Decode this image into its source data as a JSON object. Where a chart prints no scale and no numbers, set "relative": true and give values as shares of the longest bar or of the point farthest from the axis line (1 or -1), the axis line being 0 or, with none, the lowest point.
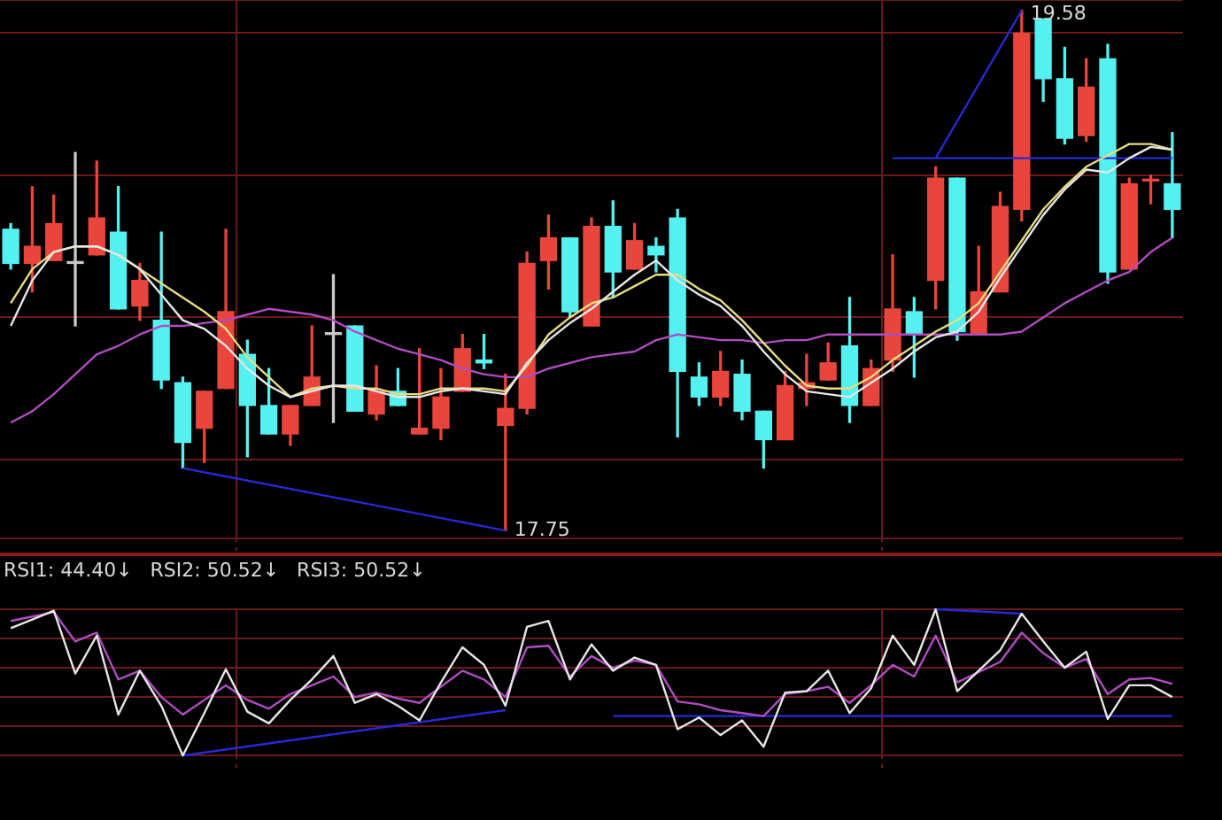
{
  "chart_data": [
    {
      "type": "candlestick",
      "grid": true,
      "tick_labels": false,
      "categories": [
        null,
        null,
        null,
        null,
        null,
        null,
        null,
        null,
        null,
        null,
        null,
        null,
        null,
        null,
        null,
        null,
        null,
        null,
        null,
        null,
        null,
        null,
        null,
        null,
        null,
        null,
        null,
        null,
        null,
        null,
        null,
        null,
        null,
        null,
        null,
        null,
        null,
        null,
        null,
        null,
        null,
        null,
        null,
        null,
        null,
        null,
        null,
        null,
        null,
        null,
        null,
        null,
        null,
        null,
        null
      ],
      "ohlc": [
        [
          18.81,
          18.83,
          18.67,
          18.69
        ],
        [
          18.69,
          18.96,
          18.59,
          18.75
        ],
        [
          18.7,
          18.93,
          18.7,
          18.83
        ],
        [
          18.69,
          19.08,
          18.47,
          18.69
        ],
        [
          18.72,
          19.05,
          18.72,
          18.85
        ],
        [
          18.8,
          18.96,
          18.53,
          18.53
        ],
        [
          18.54,
          18.69,
          18.49,
          18.63
        ],
        [
          18.49,
          18.8,
          18.25,
          18.28
        ],
        [
          18.27,
          18.29,
          17.97,
          18.06
        ],
        [
          18.11,
          18.24,
          17.99,
          18.24
        ],
        [
          18.25,
          18.81,
          18.25,
          18.52
        ],
        [
          18.37,
          18.42,
          18.01,
          18.19
        ],
        [
          18.19,
          18.32,
          18.09,
          18.09
        ],
        [
          18.09,
          18.19,
          18.05,
          18.19
        ],
        [
          18.19,
          18.47,
          18.19,
          18.29
        ],
        [
          18.44,
          18.65,
          18.13,
          18.44
        ],
        [
          18.47,
          18.47,
          18.17,
          18.17
        ],
        [
          18.16,
          18.33,
          18.14,
          18.24
        ],
        [
          18.24,
          18.32,
          18.19,
          18.19
        ],
        [
          18.09,
          18.39,
          18.09,
          18.11
        ],
        [
          18.11,
          18.32,
          18.07,
          18.22
        ],
        [
          18.24,
          18.44,
          18.24,
          18.39
        ],
        [
          18.35,
          18.44,
          18.32,
          18.34
        ],
        [
          18.12,
          18.3,
          17.75,
          18.18
        ],
        [
          18.18,
          18.73,
          18.16,
          18.69
        ],
        [
          18.7,
          18.86,
          18.6,
          18.78
        ],
        [
          18.78,
          18.78,
          18.5,
          18.52
        ],
        [
          18.47,
          18.85,
          18.47,
          18.82
        ],
        [
          18.82,
          18.91,
          18.57,
          18.66
        ],
        [
          18.67,
          18.83,
          18.67,
          18.77
        ],
        [
          18.75,
          18.78,
          18.66,
          18.72
        ],
        [
          18.85,
          18.88,
          18.08,
          18.31
        ],
        [
          18.29,
          18.34,
          18.19,
          18.22
        ],
        [
          18.22,
          18.38,
          18.19,
          18.31
        ],
        [
          18.3,
          18.35,
          18.14,
          18.17
        ],
        [
          18.17,
          18.17,
          17.97,
          18.07
        ],
        [
          18.07,
          18.31,
          18.07,
          18.26
        ],
        [
          18.25,
          18.37,
          18.19,
          18.27
        ],
        [
          18.28,
          18.41,
          18.28,
          18.34
        ],
        [
          18.4,
          18.57,
          18.13,
          18.19
        ],
        [
          18.19,
          18.35,
          18.19,
          18.32
        ],
        [
          18.35,
          18.72,
          18.31,
          18.53
        ],
        [
          18.52,
          18.57,
          18.29,
          18.44
        ],
        [
          18.63,
          19.03,
          18.53,
          18.99
        ],
        [
          18.99,
          18.99,
          18.42,
          18.45
        ],
        [
          18.44,
          18.75,
          18.44,
          18.59
        ],
        [
          18.59,
          18.94,
          18.59,
          18.89
        ],
        [
          18.88,
          19.58,
          18.84,
          19.5
        ],
        [
          19.55,
          19.55,
          19.26,
          19.34
        ],
        [
          19.34,
          19.45,
          19.11,
          19.13
        ],
        [
          19.14,
          19.41,
          19.12,
          19.31
        ],
        [
          19.41,
          19.46,
          18.62,
          18.66
        ],
        [
          18.67,
          18.99,
          18.67,
          18.97
        ],
        [
          18.98,
          19.0,
          18.9,
          18.98
        ],
        [
          18.97,
          19.15,
          18.78,
          18.88
        ]
      ],
      "colors": [
        "#55f0f0",
        "#e8453c",
        "#e8453c",
        "#c8c8c8",
        "#e8453c",
        "#55f0f0",
        "#e8453c",
        "#55f0f0",
        "#55f0f0",
        "#e8453c",
        "#e8453c",
        "#55f0f0",
        "#55f0f0",
        "#e8453c",
        "#e8453c",
        "#c8c8c8",
        "#55f0f0",
        "#e8453c",
        "#55f0f0",
        "#e8453c",
        "#e8453c",
        "#e8453c",
        "#55f0f0",
        "#e8453c",
        "#e8453c",
        "#e8453c",
        "#55f0f0",
        "#e8453c",
        "#55f0f0",
        "#e8453c",
        "#55f0f0",
        "#55f0f0",
        "#55f0f0",
        "#e8453c",
        "#55f0f0",
        "#55f0f0",
        "#e8453c",
        "#e8453c",
        "#e8453c",
        "#55f0f0",
        "#e8453c",
        "#e8453c",
        "#55f0f0",
        "#e8453c",
        "#55f0f0",
        "#e8453c",
        "#e8453c",
        "#e8453c",
        "#55f0f0",
        "#55f0f0",
        "#e8453c",
        "#55f0f0",
        "#e8453c",
        "#e8453c",
        "#55f0f0"
      ],
      "series": [
        {
          "type": "line",
          "color": "#e6e6e6",
          "values": [
            18.47,
            18.63,
            18.73,
            18.75,
            18.75,
            18.72,
            18.67,
            18.58,
            18.49,
            18.46,
            18.4,
            18.32,
            18.26,
            18.22,
            18.24,
            18.26,
            18.26,
            18.24,
            18.22,
            18.22,
            18.24,
            18.25,
            18.24,
            18.23,
            18.34,
            18.42,
            18.48,
            18.53,
            18.59,
            18.65,
            18.7,
            18.63,
            18.58,
            18.54,
            18.47,
            18.38,
            18.3,
            18.24,
            18.23,
            18.22,
            18.27,
            18.32,
            18.38,
            18.43,
            18.45,
            18.52,
            18.64,
            18.75,
            18.86,
            18.95,
            19.02,
            19.01,
            19.06,
            19.1,
            19.09
          ]
        },
        {
          "type": "line",
          "color": "#e6dc82",
          "values": [
            18.55,
            18.67,
            18.73,
            18.75,
            18.75,
            18.72,
            18.67,
            18.62,
            18.57,
            18.52,
            18.46,
            18.36,
            18.29,
            18.22,
            18.25,
            18.26,
            18.25,
            18.25,
            18.23,
            18.23,
            18.25,
            18.25,
            18.25,
            18.24,
            18.33,
            18.44,
            18.5,
            18.55,
            18.57,
            18.61,
            18.65,
            18.65,
            18.6,
            18.56,
            18.49,
            18.41,
            18.33,
            18.26,
            18.25,
            18.25,
            18.29,
            18.35,
            18.4,
            18.45,
            18.49,
            18.55,
            18.66,
            18.77,
            18.88,
            18.96,
            19.03,
            19.07,
            19.11,
            19.11,
            19.09
          ]
        },
        {
          "type": "line",
          "color": "#b04cc0",
          "values": [
            18.13,
            18.17,
            18.23,
            18.3,
            18.37,
            18.4,
            18.44,
            18.47,
            18.47,
            18.48,
            18.49,
            18.51,
            18.53,
            18.52,
            18.51,
            18.49,
            18.45,
            18.42,
            18.39,
            18.37,
            18.35,
            18.32,
            18.3,
            18.29,
            18.29,
            18.32,
            18.34,
            18.36,
            18.37,
            18.38,
            18.42,
            18.44,
            18.43,
            18.42,
            18.42,
            18.41,
            18.42,
            18.42,
            18.44,
            18.44,
            18.44,
            18.44,
            18.44,
            18.44,
            18.44,
            18.44,
            18.44,
            18.45,
            18.5,
            18.55,
            18.59,
            18.63,
            18.66,
            18.73,
            18.78
          ]
        },
        {
          "type": "line",
          "color": "#2828d8",
          "values": [
            null,
            null,
            null,
            null,
            null,
            null,
            null,
            null,
            17.97,
            null,
            null,
            null,
            null,
            null,
            null,
            null,
            null,
            null,
            null,
            null,
            null,
            null,
            null,
            17.75,
            null,
            null,
            null,
            null,
            null,
            null,
            null,
            null,
            null,
            null,
            null,
            null,
            null,
            null,
            null,
            null,
            null,
            null,
            null,
            null,
            null,
            null,
            null,
            null,
            null,
            null,
            null,
            null,
            null,
            null,
            null
          ]
        },
        {
          "type": "line",
          "color": "#2828d8",
          "values": [
            null,
            null,
            null,
            null,
            null,
            null,
            null,
            null,
            null,
            null,
            null,
            null,
            null,
            null,
            null,
            null,
            null,
            null,
            null,
            null,
            null,
            null,
            null,
            null,
            null,
            null,
            null,
            null,
            null,
            null,
            null,
            null,
            null,
            null,
            null,
            null,
            null,
            null,
            null,
            null,
            null,
            19.06,
            null,
            null,
            null,
            null,
            null,
            null,
            null,
            null,
            null,
            null,
            null,
            null,
            19.06
          ]
        },
        {
          "type": "line",
          "color": "#2828d8",
          "values": [
            null,
            null,
            null,
            null,
            null,
            null,
            null,
            null,
            null,
            null,
            null,
            null,
            null,
            null,
            null,
            null,
            null,
            null,
            null,
            null,
            null,
            null,
            null,
            null,
            null,
            null,
            null,
            null,
            null,
            null,
            null,
            null,
            null,
            null,
            null,
            null,
            null,
            null,
            null,
            null,
            null,
            null,
            null,
            19.06,
            null,
            null,
            null,
            19.58,
            null,
            null,
            null,
            null,
            null,
            null,
            null
          ]
        }
      ],
      "annotations": [
        "19.58",
        "17.75"
      ]
    },
    {
      "type": "line",
      "relative": true,
      "grid": true,
      "categories": [
        null,
        null,
        null,
        null,
        null,
        null,
        null,
        null,
        null,
        null,
        null,
        null,
        null,
        null,
        null,
        null,
        null,
        null,
        null,
        null,
        null,
        null,
        null,
        null,
        null,
        null,
        null,
        null,
        null,
        null,
        null,
        null,
        null,
        null,
        null,
        null,
        null,
        null,
        null,
        null,
        null,
        null,
        null,
        null,
        null,
        null,
        null,
        null,
        null,
        null,
        null,
        null,
        null,
        null,
        null
      ],
      "series": [
        {
          "color": "#e6e6e6",
          "values": [
            0.87,
            0.93,
            0.99,
            0.56,
            0.82,
            0.28,
            0.58,
            0.34,
            0,
            0.29,
            0.59,
            0.3,
            0.22,
            0.38,
            0.52,
            0.68,
            0.36,
            0.42,
            0.34,
            0.24,
            0.5,
            0.74,
            0.62,
            0.34,
            0.88,
            0.92,
            0.52,
            0.76,
            0.58,
            0.67,
            0.62,
            0.18,
            0.26,
            0.14,
            0.24,
            0.06,
            0.43,
            0.44,
            0.58,
            0.29,
            0.46,
            0.82,
            0.62,
            1,
            0.44,
            0.58,
            0.72,
            0.97,
            0.78,
            0.6,
            0.71,
            0.25,
            0.48,
            0.48,
            0.4
          ]
        },
        {
          "color": "#b04cc0",
          "values": [
            0.92,
            0.95,
            0.98,
            0.78,
            0.84,
            0.52,
            0.58,
            0.4,
            0.28,
            0.38,
            0.48,
            0.38,
            0.32,
            0.42,
            0.48,
            0.54,
            0.4,
            0.43,
            0.39,
            0.36,
            0.47,
            0.58,
            0.52,
            0.4,
            0.74,
            0.75,
            0.54,
            0.68,
            0.6,
            0.65,
            0.62,
            0.37,
            0.35,
            0.31,
            0.29,
            0.27,
            0.42,
            0.44,
            0.47,
            0.36,
            0.48,
            0.62,
            0.54,
            0.82,
            0.5,
            0.57,
            0.64,
            0.84,
            0.7,
            0.6,
            0.66,
            0.42,
            0.52,
            0.53,
            0.49
          ]
        },
        {
          "color": "#2828d8",
          "values": [
            null,
            null,
            null,
            null,
            null,
            null,
            null,
            null,
            0,
            null,
            null,
            null,
            null,
            null,
            null,
            null,
            null,
            null,
            null,
            null,
            null,
            null,
            null,
            0.31,
            null,
            null,
            null,
            null,
            null,
            null,
            null,
            null,
            null,
            null,
            null,
            null,
            null,
            null,
            null,
            null,
            null,
            null,
            null,
            null,
            null,
            null,
            null,
            null,
            null,
            null,
            null,
            null,
            null,
            null,
            null
          ]
        },
        {
          "color": "#2828d8",
          "values": [
            null,
            null,
            null,
            null,
            null,
            null,
            null,
            null,
            null,
            null,
            null,
            null,
            null,
            null,
            null,
            null,
            null,
            null,
            null,
            null,
            null,
            null,
            null,
            null,
            null,
            null,
            null,
            null,
            null,
            null,
            null,
            null,
            null,
            null,
            null,
            null,
            null,
            null,
            null,
            null,
            null,
            null,
            null,
            1,
            null,
            null,
            null,
            0.97,
            null,
            null,
            null,
            null,
            null,
            null,
            null
          ]
        },
        {
          "color": "#2828d8",
          "values": [
            null,
            null,
            null,
            null,
            null,
            null,
            null,
            null,
            null,
            null,
            null,
            null,
            null,
            null,
            null,
            null,
            null,
            null,
            null,
            null,
            null,
            null,
            null,
            null,
            null,
            null,
            null,
            null,
            0.27,
            null,
            null,
            null,
            null,
            null,
            null,
            null,
            null,
            null,
            null,
            null,
            null,
            null,
            null,
            null,
            null,
            null,
            null,
            null,
            null,
            null,
            null,
            null,
            null,
            null,
            0.27
          ]
        }
      ],
      "annotations": [
        "RSI1: 44.40↓",
        "RSI2: 50.52↓",
        "RSI3: 50.52↓"
      ]
    }
  ]
}
